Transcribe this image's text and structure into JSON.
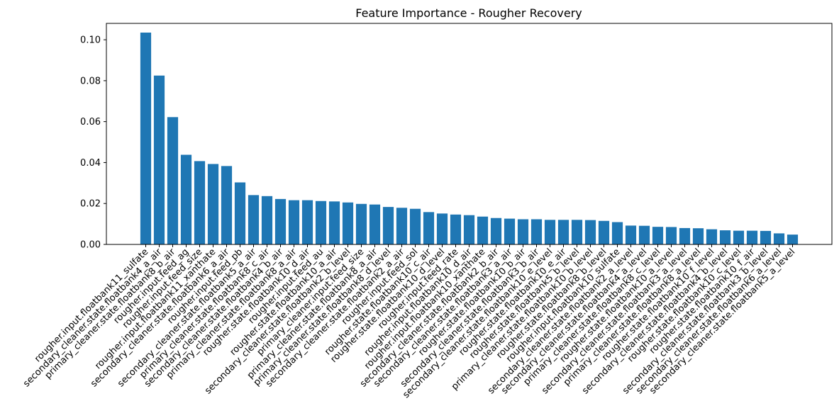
{
  "chart_data": {
    "type": "bar",
    "title": "Feature Importance - Rougher Recovery",
    "xlabel": "",
    "ylabel": "",
    "ylim": [
      0,
      0.108
    ],
    "yticks": [
      "0.00",
      "0.02",
      "0.04",
      "0.06",
      "0.08",
      "0.10"
    ],
    "grid": false,
    "bar_color": "#1f77b4",
    "categories": [
      "rougher.input.floatbank11_sulfate",
      "secondary_cleaner.state.floatbank4_a_air",
      "primary_cleaner.state.floatbank8_b_air",
      "rougher.input.feed_ag",
      "rougher.input.feed_size",
      "rougher.input.floatbank11_xanthate",
      "secondary_cleaner.state.floatbank6_a_air",
      "rougher.input.feed_pb",
      "secondary_cleaner.state.floatbank5_a_air",
      "primary_cleaner.state.floatbank8_c_air",
      "secondary_cleaner.state.floatbank4_b_air",
      "primary_cleaner.state.floatbank8_a_air",
      "rougher.state.floatbank10_d_air",
      "rougher.input.feed_au",
      "rougher.state.floatbank10_a_air",
      "secondary_cleaner.state.floatbank2_b_level",
      "primary_cleaner.input.feed_size",
      "primary_cleaner.state.floatbank8_a_air",
      "primary_cleaner.state.floatbank8_d_level",
      "secondary_cleaner.state.floatbank2_a_air",
      "rougher.input.feed_sol",
      "rougher.state.floatbank10_c_air",
      "rougher.state.floatbank10_d_level",
      "rougher.input.feed_rate",
      "rougher.input.floatbank10_d_air",
      "rougher.input.floatbank10_xanthate",
      "secondary_cleaner.state.floatbank2_b_air",
      "secondary_cleaner.state.floatbank3_a_air",
      "rougher.state.floatbank10_b_air",
      "secondary_cleaner.state.floatbank3_b_air",
      "secondary_cleaner.state.floatbank10_e_level",
      "rougher.state.floatbank10_e_air",
      "rougher.state.floatbank5_b_level",
      "primary_cleaner.state.floatbank10_b_level",
      "rougher.state.floatbank8_b_level",
      "rougher.input.floatbank10_sulfate",
      "secondary_cleaner.state.floatbank2_a_level",
      "secondary_cleaner.state.floatbank4_a_level",
      "primary_cleaner.state.floatbank8_c_level",
      "rougher.state.floatbank10_a_level",
      "secondary_cleaner.state.floatbank3_a_level",
      "primary_cleaner.state.floatbank8_a_level",
      "rougher.state.floatbank10_f_level",
      "secondary_cleaner.state.floatbank4_b_level",
      "rougher.state.floatbank10_c_level",
      "rougher.state.floatbank10_f_air",
      "secondary_cleaner.state.floatbank3_b_level",
      "secondary_cleaner.state.floatbank6_a_level",
      "secondary_cleaner.state.floatbank5_a_level"
    ],
    "values": [
      0.1035,
      0.0825,
      0.0622,
      0.0438,
      0.0407,
      0.0393,
      0.0383,
      0.0303,
      0.0241,
      0.0236,
      0.0222,
      0.0216,
      0.0216,
      0.0212,
      0.021,
      0.0205,
      0.0198,
      0.0195,
      0.0183,
      0.0179,
      0.0174,
      0.0158,
      0.0151,
      0.0146,
      0.0143,
      0.0136,
      0.0129,
      0.0126,
      0.0123,
      0.0123,
      0.012,
      0.012,
      0.012,
      0.0119,
      0.0115,
      0.0109,
      0.0092,
      0.0091,
      0.0086,
      0.0085,
      0.008,
      0.0079,
      0.0074,
      0.0069,
      0.0067,
      0.0067,
      0.0066,
      0.0054,
      0.0048
    ]
  }
}
